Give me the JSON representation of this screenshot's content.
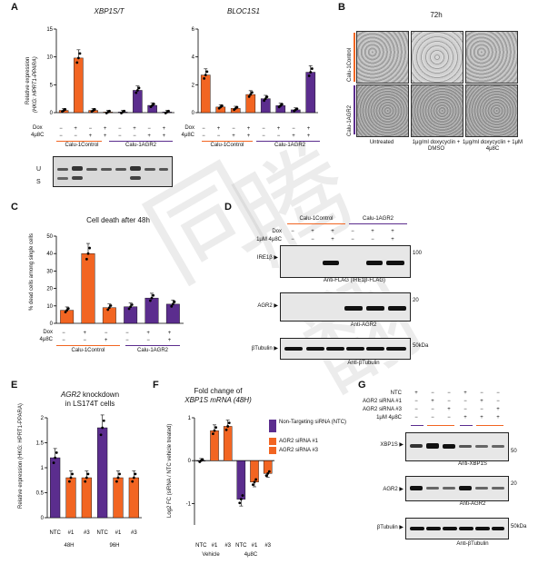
{
  "panels": {
    "A": "A",
    "B": "B",
    "C": "C",
    "D": "D",
    "E": "E",
    "F": "F",
    "G": "G"
  },
  "colors": {
    "control": "#f26522",
    "agr2": "#5b2d8e",
    "ntc": "#5b2d8e",
    "sirna": "#f26522"
  },
  "panelA": {
    "title1": "XBP1S/T",
    "title2": "BLOC1S1",
    "ylabel1": "Relative expression",
    "ylabel2": "(HKG: HPRT1-PPARA)",
    "dox": "Dox",
    "inh": "4μ8C",
    "row_dox": [
      "−",
      "+",
      "−",
      "+",
      "−",
      "+",
      "−",
      "+"
    ],
    "row_inh": [
      "−",
      "−",
      "+",
      "+",
      "−",
      "−",
      "+",
      "+"
    ],
    "grp_control": "Calu-1Control",
    "grp_agr2": "Calu-1AGR2",
    "gel_u": "U",
    "gel_s": "S"
  },
  "panelB": {
    "title": "72h",
    "row1": "Calu-1Control",
    "row2": "Calu-1AGR2",
    "col1": "Untreated",
    "col2": "1μg/ml doxycyclin + DMSO",
    "col3": "1μg/ml doxycyclin + 1μM 4μ8C"
  },
  "panelC": {
    "title": "Cell death after 48h",
    "ylabel": "% dead cells among single cells",
    "dox": "Dox",
    "inh": "4μ8C",
    "grp_control": "Calu-1Control",
    "grp_agr2": "Calu-1AGR2"
  },
  "panelD": {
    "grp_control": "Calu-1Control",
    "grp_agr2": "Calu-1AGR2",
    "dox": "Dox",
    "inh": "1μM 4μ8C",
    "row_dox": [
      "−",
      "+",
      "+",
      "−",
      "+",
      "+"
    ],
    "row_inh": [
      "−",
      "−",
      "+",
      "−",
      "−",
      "+"
    ],
    "b1": "IRE1β ▶",
    "b1_ab": "Anti-FLAG (IRE1β-FLAG)",
    "b1_mw": "100",
    "b2": "AGR2 ▶",
    "b2_ab": "Anti-AGR2",
    "b2_mw": "20",
    "b3": "βTubulin ▶",
    "b3_ab": "Anti-βTubulin",
    "b3_mw": "50kDa"
  },
  "panelE": {
    "title1": "AGR2 knockdown",
    "title2": "in LS174T cells",
    "ylabel": "Relative expression (HKG: HPRT1-PPARA)",
    "ticks": [
      "NTC",
      "#1",
      "#3",
      "NTC",
      "#1",
      "#3"
    ],
    "g1": "48H",
    "g2": "96H"
  },
  "panelF": {
    "title1": "Fold change of",
    "title2": "XBP1S mRNA (48H)",
    "ylabel": "Log2 FC (siRNA / NTC vehicle treated)",
    "legend": [
      "Non-Targeting siRNA (NTC)",
      "AGR2 siRNA #1",
      "AGR2 siRNA #3"
    ],
    "ticks": [
      "NTC",
      "#1",
      "#3",
      "NTC",
      "#1",
      "#3"
    ],
    "g1": "Vehicle",
    "g2": "4μ8C"
  },
  "panelG": {
    "rows": [
      "NTC",
      "AGR2 siRNA #1",
      "AGR2 siRNA #3",
      "1μM 4μ8C"
    ],
    "row_vals": [
      [
        "+",
        "−",
        "−",
        "+",
        "−",
        "−"
      ],
      [
        "−",
        "+",
        "−",
        "−",
        "+",
        "−"
      ],
      [
        "−",
        "−",
        "+",
        "−",
        "−",
        "+"
      ],
      [
        "−",
        "−",
        "−",
        "+",
        "+",
        "+"
      ]
    ],
    "b1": "XBP1S ▶",
    "b1_ab": "Anti-XBP1S",
    "b1_mw": "50",
    "b2": "AGR2 ▶",
    "b2_ab": "Anti-AGR2",
    "b2_mw": "20",
    "b3": "βTubulin ▶",
    "b3_ab": "Anti-βTubulin",
    "b3_mw": "50kDa"
  },
  "chart_data": [
    {
      "panel": "A",
      "type": "bar",
      "title": "XBP1S/T",
      "categories": [
        "1",
        "2",
        "3",
        "4",
        "5",
        "6",
        "7",
        "8"
      ],
      "values": [
        0.4,
        9.8,
        0.4,
        0.1,
        0.1,
        4.0,
        1.3,
        0.1
      ],
      "ylim": [
        0,
        15
      ],
      "yticks": [
        0,
        5,
        10,
        15
      ]
    },
    {
      "panel": "A",
      "type": "bar",
      "title": "BLOC1S1",
      "categories": [
        "1",
        "2",
        "3",
        "4",
        "5",
        "6",
        "7",
        "8"
      ],
      "values": [
        2.7,
        0.4,
        0.3,
        1.3,
        1.0,
        0.5,
        0.2,
        2.9
      ],
      "ylim": [
        0,
        6
      ],
      "yticks": [
        0,
        2,
        4,
        6
      ]
    },
    {
      "panel": "C",
      "type": "bar",
      "title": "Cell death after 48h",
      "categories": [
        "1",
        "2",
        "3",
        "4",
        "5",
        "6"
      ],
      "values": [
        7.5,
        40,
        9,
        9.5,
        14.5,
        11
      ],
      "ylim": [
        0,
        50
      ],
      "yticks": [
        0,
        10,
        20,
        30,
        40,
        50
      ]
    },
    {
      "panel": "E",
      "type": "bar",
      "title": "AGR2 knockdown in LS174T cells",
      "categories": [
        "NTC",
        "#1",
        "#3",
        "NTC",
        "#1",
        "#3"
      ],
      "values": [
        1.2,
        0.8,
        0.8,
        1.8,
        0.8,
        0.8
      ],
      "ylim": [
        0,
        2.0
      ],
      "yticks": [
        0.0,
        0.5,
        1.0,
        1.5,
        2.0
      ]
    },
    {
      "panel": "F",
      "type": "bar",
      "title": "Fold change of XBP1S mRNA (48H)",
      "categories": [
        "NTC",
        "#1",
        "#3",
        "NTC",
        "#1",
        "#3"
      ],
      "values": [
        0,
        0.7,
        0.8,
        -0.9,
        -0.5,
        -0.3
      ],
      "ylim": [
        -1.5,
        1.0
      ],
      "yticks": [
        -1,
        0,
        1
      ]
    }
  ]
}
